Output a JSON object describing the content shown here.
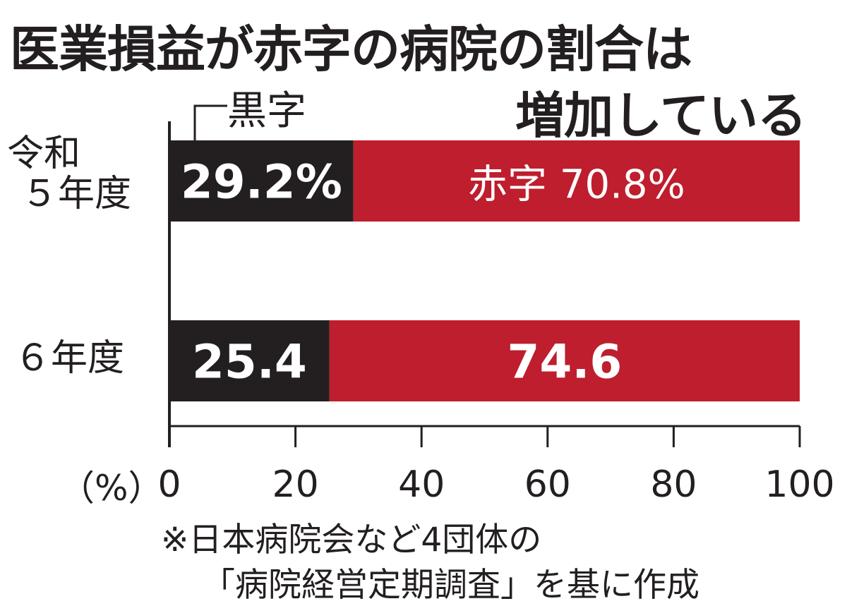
{
  "title_line1": "医業損益が赤字の病院の割合は",
  "title_line2": "増加している",
  "legend_black_label": "黒字",
  "units_label": "（%）",
  "source_line1": "※日本病院会など4団体の",
  "source_line2": "「病院経営定期調査」を基に作成",
  "colors": {
    "black": "#231f20",
    "red": "#be1e2d",
    "axis": "#231f20"
  },
  "chart_data": {
    "type": "bar",
    "orientation": "horizontal",
    "stacked": true,
    "categories": [
      {
        "line1": "令和",
        "line2": "５年度"
      },
      {
        "line1": "６年度",
        "line2": ""
      }
    ],
    "series": [
      {
        "name": "黒字",
        "values": [
          29.2,
          25.4
        ],
        "color": "#231f20",
        "data_labels": [
          "29.2%",
          "25.4"
        ]
      },
      {
        "name": "赤字",
        "values": [
          70.8,
          74.6
        ],
        "color": "#be1e2d",
        "data_labels": [
          "赤字 70.8%",
          "74.6"
        ]
      }
    ],
    "xlim": [
      0,
      100
    ],
    "xticks": [
      0,
      20,
      40,
      60,
      80,
      100
    ],
    "xtick_labels": [
      "0",
      "20",
      "40",
      "60",
      "80",
      "100"
    ]
  }
}
